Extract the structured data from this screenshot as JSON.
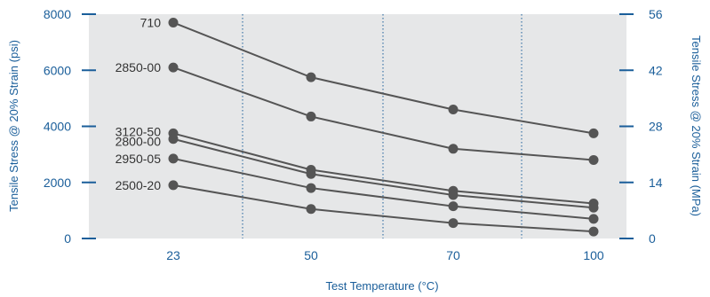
{
  "chart_data": {
    "type": "line",
    "xlabel": "Test Temperature (°C)",
    "ylabel": "Tensile Stress @ 20% Strain  (psi)",
    "ylabel_right": "Tensile Stress @ 20% Strain  (MPa)",
    "categories": [
      "23",
      "50",
      "70",
      "100"
    ],
    "ylim": [
      0,
      8000
    ],
    "yticks": [
      "0",
      "2000",
      "4000",
      "6000",
      "8000"
    ],
    "ylim_right": [
      0,
      56
    ],
    "yticks_right": [
      "0",
      "14",
      "28",
      "42",
      "56"
    ],
    "grid": "vertical dotted separators between categories",
    "series": [
      {
        "name": "710",
        "values": [
          7700,
          5750,
          4600,
          3750
        ]
      },
      {
        "name": "2850-00",
        "values": [
          6100,
          4350,
          3200,
          2800
        ]
      },
      {
        "name": "3120-50",
        "values": [
          3750,
          2450,
          1700,
          1250
        ]
      },
      {
        "name": "2800-00",
        "values": [
          3550,
          2300,
          1550,
          1100
        ]
      },
      {
        "name": "2950-05",
        "values": [
          2850,
          1800,
          1150,
          700
        ]
      },
      {
        "name": "2500-20",
        "values": [
          1900,
          1050,
          550,
          250
        ]
      }
    ],
    "colors": {
      "plot_bg": "#e6e7e8",
      "axis": "#1a5e9a",
      "line": "#555555",
      "marker": "#555555",
      "grid": "#1a5e9a"
    }
  }
}
